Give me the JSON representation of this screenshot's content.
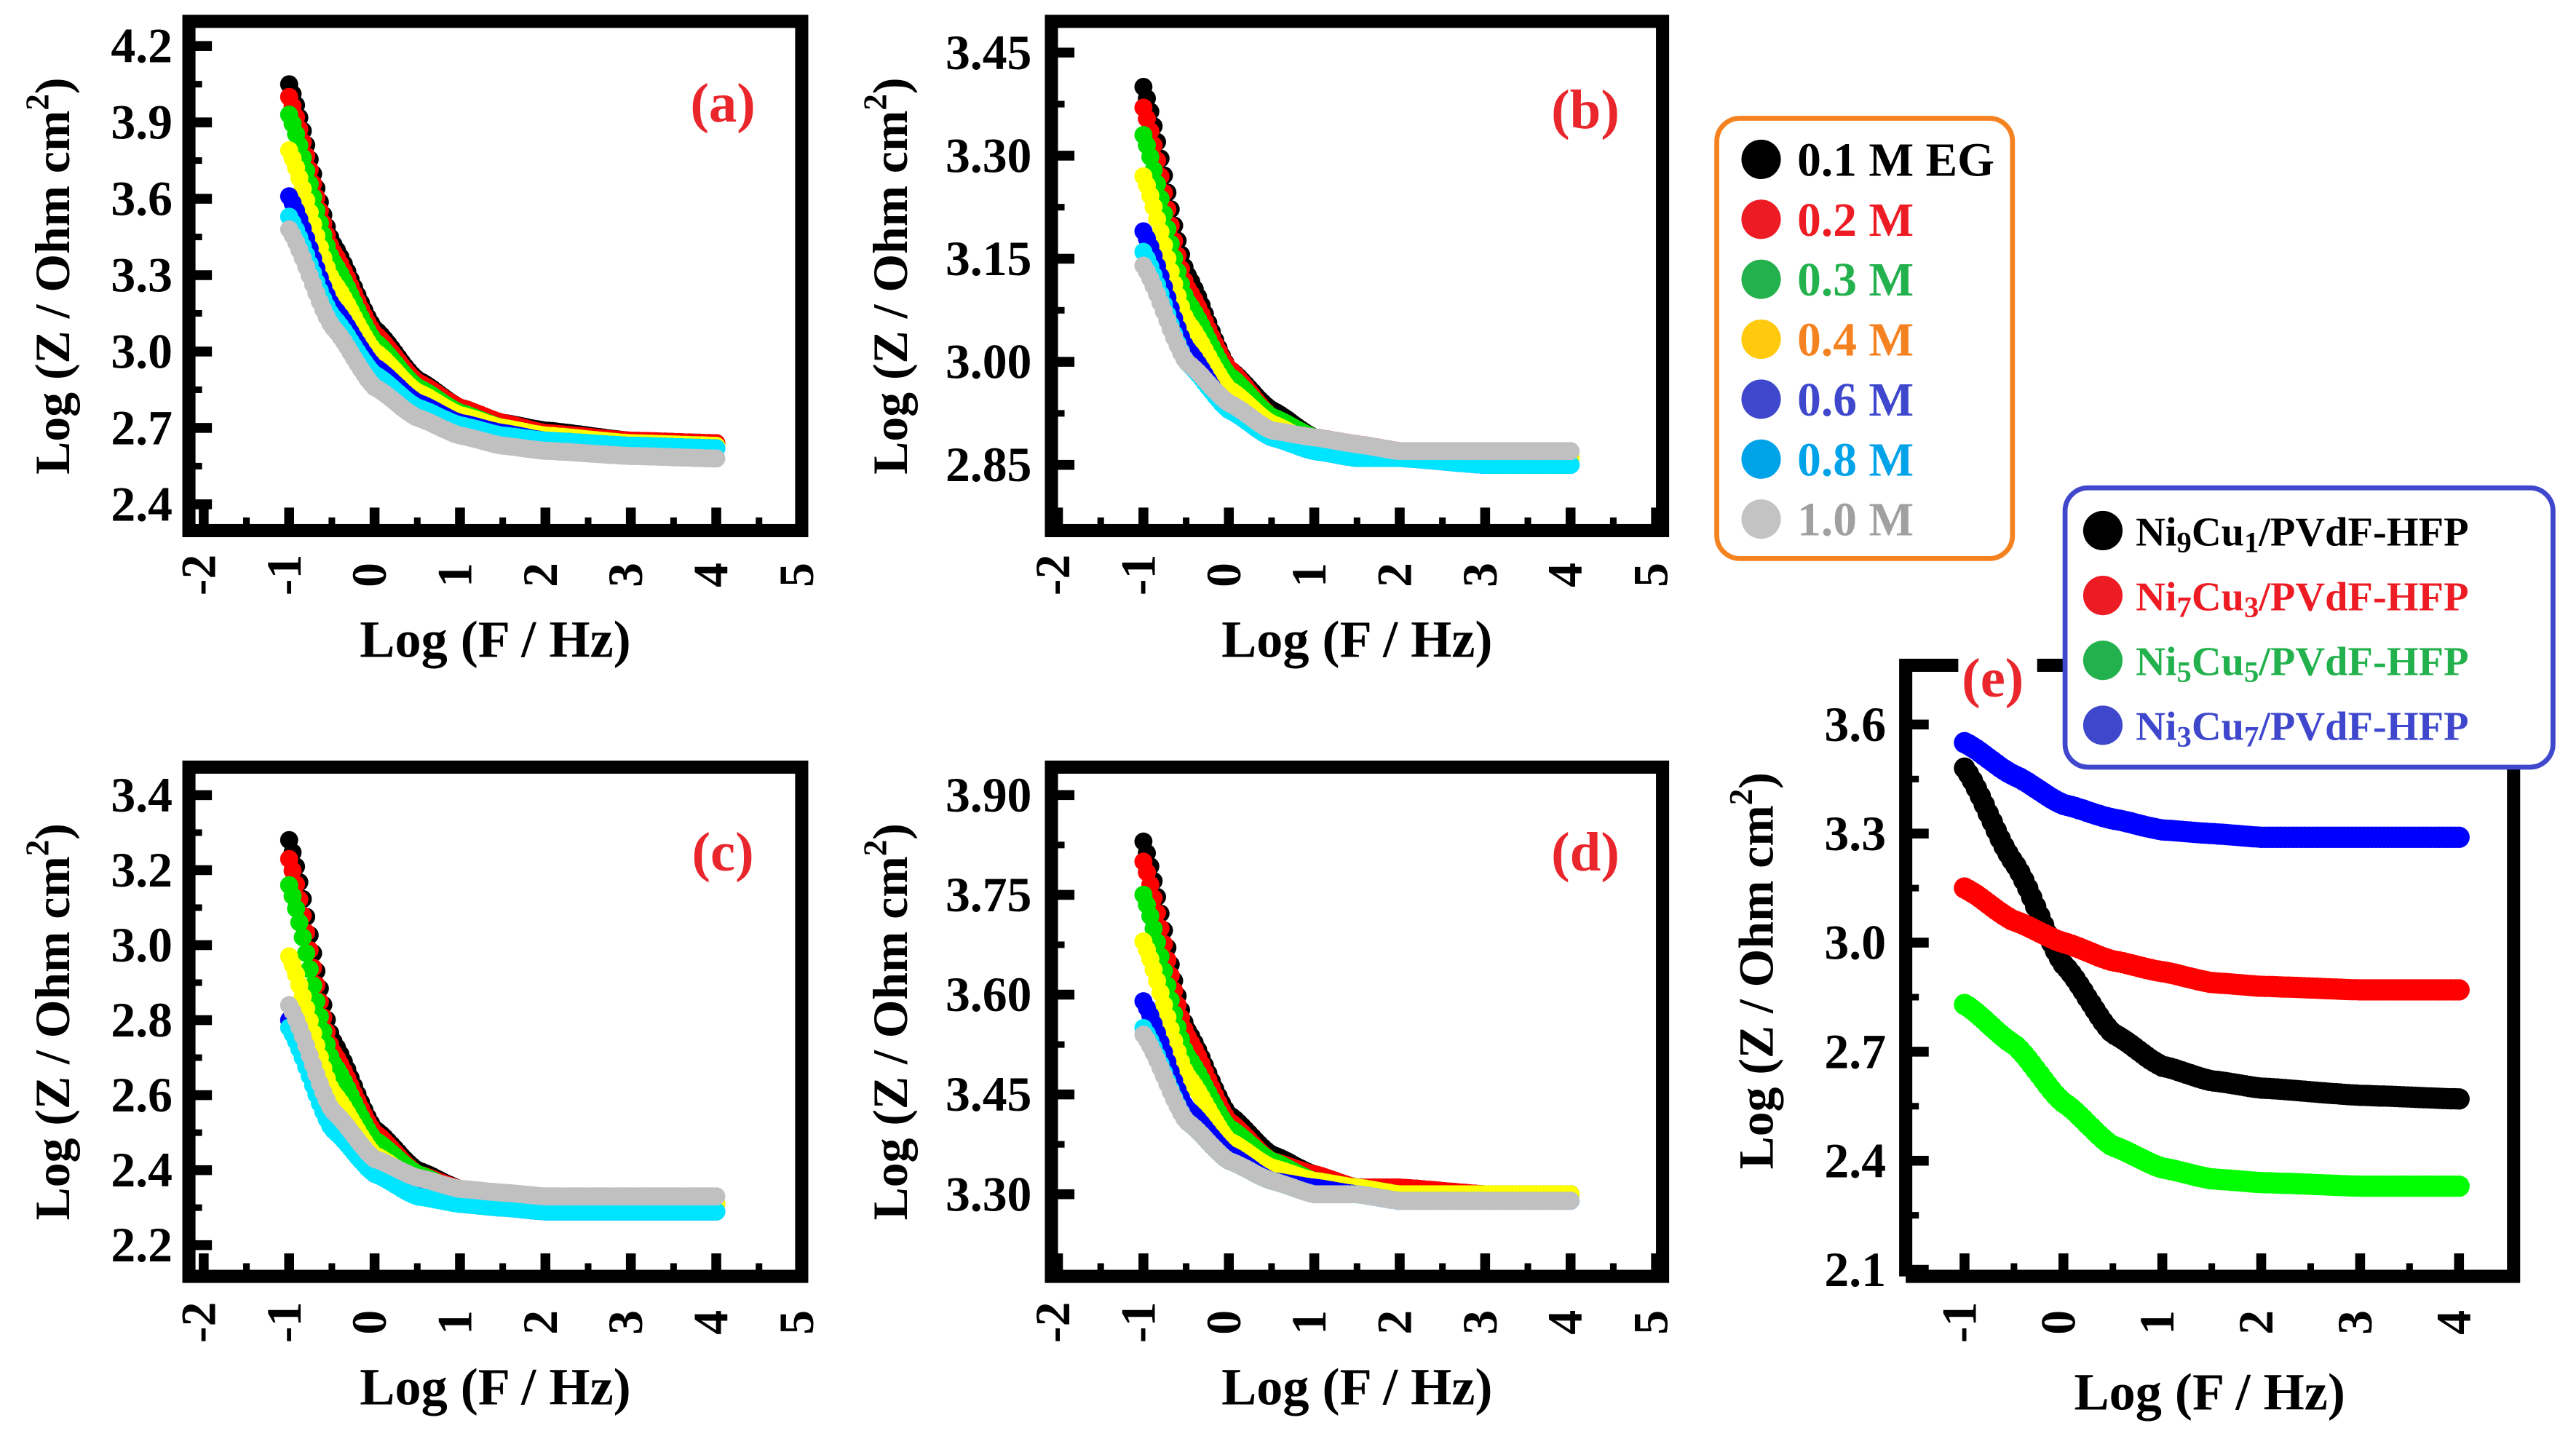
{
  "chart_data": [
    {
      "panel": "(a)",
      "type": "scatter",
      "xlabel": "Log (F / Hz)",
      "ylabel": {
        "main": "Log (Z / Ohm cm",
        "sup": "2",
        "end": ")"
      },
      "xticks": [
        "-2",
        "-1",
        "0",
        "1",
        "2",
        "3",
        "4",
        "5"
      ],
      "xlim": [
        -2,
        5
      ],
      "yticks": [
        "2.4",
        "2.7",
        "3.0",
        "3.3",
        "3.6",
        "3.9",
        "4.2"
      ],
      "ylim": [
        2.4,
        4.2
      ],
      "x": [
        -1,
        -0.5,
        0,
        0.5,
        1,
        1.5,
        2,
        3,
        4
      ],
      "series": [
        {
          "name": "0.1 M EG",
          "values": [
            4.05,
            3.43,
            3.09,
            2.89,
            2.78,
            2.72,
            2.69,
            2.65,
            2.64
          ]
        },
        {
          "name": "0.2 M",
          "values": [
            4.0,
            3.4,
            3.07,
            2.88,
            2.78,
            2.72,
            2.68,
            2.65,
            2.64
          ]
        },
        {
          "name": "0.3 M",
          "values": [
            3.93,
            3.36,
            3.04,
            2.86,
            2.76,
            2.7,
            2.67,
            2.64,
            2.63
          ]
        },
        {
          "name": "0.4 M",
          "values": [
            3.79,
            3.28,
            3.0,
            2.84,
            2.75,
            2.7,
            2.67,
            2.64,
            2.63
          ]
        },
        {
          "name": "0.6 M",
          "values": [
            3.61,
            3.18,
            2.94,
            2.8,
            2.72,
            2.68,
            2.65,
            2.63,
            2.62
          ]
        },
        {
          "name": "0.8 M",
          "values": [
            3.53,
            3.14,
            2.91,
            2.78,
            2.71,
            2.67,
            2.65,
            2.63,
            2.62
          ]
        },
        {
          "name": "1.0 M",
          "values": [
            3.48,
            3.1,
            2.86,
            2.74,
            2.67,
            2.63,
            2.61,
            2.59,
            2.58
          ]
        }
      ]
    },
    {
      "panel": "(b)",
      "type": "scatter",
      "xlabel": "Log (F / Hz)",
      "ylabel": {
        "main": "Log (Z / Ohm cm",
        "sup": "2",
        "end": ")"
      },
      "xticks": [
        "-2",
        "-1",
        "0",
        "1",
        "2",
        "3",
        "4",
        "5"
      ],
      "xlim": [
        -2,
        5
      ],
      "yticks": [
        "2.85",
        "3.00",
        "3.15",
        "3.30",
        "3.45"
      ],
      "ylim": [
        2.85,
        3.45
      ],
      "x": [
        -1,
        -0.5,
        0,
        0.5,
        1,
        1.5,
        2,
        3,
        4
      ],
      "series": [
        {
          "name": "0.1 M EG",
          "values": [
            3.4,
            3.13,
            2.99,
            2.93,
            2.89,
            2.88,
            2.87,
            2.86,
            2.86
          ]
        },
        {
          "name": "0.2 M",
          "values": [
            3.37,
            3.11,
            2.99,
            2.92,
            2.89,
            2.88,
            2.87,
            2.86,
            2.86
          ]
        },
        {
          "name": "0.3 M",
          "values": [
            3.33,
            3.09,
            2.98,
            2.92,
            2.89,
            2.87,
            2.87,
            2.86,
            2.86
          ]
        },
        {
          "name": "0.4 M",
          "values": [
            3.27,
            3.06,
            2.96,
            2.91,
            2.88,
            2.87,
            2.87,
            2.86,
            2.86
          ]
        },
        {
          "name": "0.6 M",
          "values": [
            3.19,
            3.02,
            2.93,
            2.89,
            2.87,
            2.86,
            2.86,
            2.85,
            2.85
          ]
        },
        {
          "name": "0.8 M",
          "values": [
            3.16,
            3.0,
            2.93,
            2.89,
            2.87,
            2.86,
            2.86,
            2.85,
            2.85
          ]
        },
        {
          "name": "1.0 M",
          "values": [
            3.14,
            3.0,
            2.94,
            2.9,
            2.89,
            2.88,
            2.87,
            2.87,
            2.87
          ]
        }
      ]
    },
    {
      "panel": "(c)",
      "type": "scatter",
      "xlabel": "Log (F / Hz)",
      "ylabel": {
        "main": "Log (Z / Ohm cm",
        "sup": "2",
        "end": ")"
      },
      "xticks": [
        "-2",
        "-1",
        "0",
        "1",
        "2",
        "3",
        "4",
        "5"
      ],
      "xlim": [
        -2,
        5
      ],
      "yticks": [
        "2.2",
        "2.4",
        "2.6",
        "2.8",
        "3.0",
        "3.2",
        "3.4"
      ],
      "ylim": [
        2.2,
        3.4
      ],
      "x": [
        -1,
        -0.5,
        0,
        0.5,
        1,
        1.5,
        2,
        3,
        4
      ],
      "series": [
        {
          "name": "0.1 M EG",
          "values": [
            3.28,
            2.75,
            2.51,
            2.4,
            2.35,
            2.33,
            2.32,
            2.31,
            2.31
          ]
        },
        {
          "name": "0.2 M",
          "values": [
            3.23,
            2.72,
            2.5,
            2.39,
            2.35,
            2.33,
            2.32,
            2.31,
            2.31
          ]
        },
        {
          "name": "0.3 M",
          "values": [
            3.16,
            2.69,
            2.48,
            2.39,
            2.34,
            2.33,
            2.32,
            2.31,
            2.31
          ]
        },
        {
          "name": "0.4 M",
          "values": [
            2.97,
            2.61,
            2.44,
            2.37,
            2.34,
            2.32,
            2.32,
            2.31,
            2.31
          ]
        },
        {
          "name": "0.6 M",
          "values": [
            2.8,
            2.52,
            2.39,
            2.34,
            2.31,
            2.3,
            2.29,
            2.29,
            2.29
          ]
        },
        {
          "name": "0.8 M",
          "values": [
            2.78,
            2.51,
            2.39,
            2.33,
            2.31,
            2.3,
            2.29,
            2.29,
            2.29
          ]
        },
        {
          "name": "1.0 M",
          "values": [
            2.84,
            2.56,
            2.43,
            2.38,
            2.35,
            2.34,
            2.33,
            2.33,
            2.33
          ]
        }
      ]
    },
    {
      "panel": "(d)",
      "type": "scatter",
      "xlabel": "Log (F / Hz)",
      "ylabel": {
        "main": "Log (Z / Ohm cm",
        "sup": "2",
        "end": ")"
      },
      "xticks": [
        "-2",
        "-1",
        "0",
        "1",
        "2",
        "3",
        "4",
        "5"
      ],
      "xlim": [
        -2,
        5
      ],
      "yticks": [
        "3.30",
        "3.45",
        "3.60",
        "3.75",
        "3.90"
      ],
      "ylim": [
        3.3,
        3.9
      ],
      "x": [
        -1,
        -0.5,
        0,
        0.5,
        1,
        1.5,
        2,
        3,
        4
      ],
      "series": [
        {
          "name": "0.1 M EG",
          "values": [
            3.83,
            3.55,
            3.42,
            3.36,
            3.33,
            3.31,
            3.31,
            3.3,
            3.3
          ]
        },
        {
          "name": "0.2 M",
          "values": [
            3.8,
            3.54,
            3.41,
            3.35,
            3.33,
            3.31,
            3.31,
            3.3,
            3.3
          ]
        },
        {
          "name": "0.3 M",
          "values": [
            3.75,
            3.51,
            3.4,
            3.35,
            3.32,
            3.31,
            3.3,
            3.3,
            3.3
          ]
        },
        {
          "name": "0.4 M",
          "values": [
            3.68,
            3.48,
            3.38,
            3.34,
            3.32,
            3.31,
            3.3,
            3.3,
            3.3
          ]
        },
        {
          "name": "0.6 M",
          "values": [
            3.59,
            3.43,
            3.36,
            3.32,
            3.31,
            3.3,
            3.29,
            3.29,
            3.29
          ]
        },
        {
          "name": "0.8 M",
          "values": [
            3.55,
            3.41,
            3.35,
            3.32,
            3.3,
            3.3,
            3.29,
            3.29,
            3.29
          ]
        },
        {
          "name": "1.0 M",
          "values": [
            3.54,
            3.41,
            3.35,
            3.32,
            3.3,
            3.3,
            3.29,
            3.29,
            3.29
          ]
        }
      ]
    },
    {
      "panel": "(e)",
      "type": "scatter",
      "xlabel": "Log (F / Hz)",
      "ylabel": {
        "main": "Log (Z / Ohm cm",
        "sup": "2",
        "end": ")"
      },
      "xticks": [
        "-1",
        "0",
        "1",
        "2",
        "3",
        "4"
      ],
      "xlim": [
        -1,
        4
      ],
      "yticks": [
        "2.1",
        "2.4",
        "2.7",
        "3.0",
        "3.3",
        "3.6"
      ],
      "ylim": [
        2.1,
        3.6
      ],
      "x": [
        -1,
        -0.5,
        0,
        0.5,
        1,
        1.5,
        2,
        3,
        4
      ],
      "series": [
        {
          "name": "Ni9Cu1/PVdF-HFP",
          "values": [
            3.48,
            3.22,
            2.94,
            2.75,
            2.66,
            2.62,
            2.6,
            2.58,
            2.57
          ]
        },
        {
          "name": "Ni7Cu3/PVdF-HFP",
          "values": [
            3.15,
            3.06,
            3.0,
            2.95,
            2.92,
            2.89,
            2.88,
            2.87,
            2.87
          ]
        },
        {
          "name": "Ni5Cu5/PVdF-HFP",
          "values": [
            2.83,
            2.72,
            2.56,
            2.44,
            2.38,
            2.35,
            2.34,
            2.33,
            2.33
          ]
        },
        {
          "name": "Ni3Cu7/PVdF-HFP",
          "values": [
            3.55,
            3.46,
            3.38,
            3.34,
            3.31,
            3.3,
            3.29,
            3.29,
            3.29
          ]
        }
      ]
    }
  ],
  "legend_concentration": {
    "border_color": "#f58220",
    "items": [
      {
        "label": "0.1 M EG",
        "marker": "#000000",
        "text": "#000000"
      },
      {
        "label": "0.2 M",
        "marker": "#ed1c24",
        "text": "#ed1c24"
      },
      {
        "label": "0.3 M",
        "marker": "#22b14c",
        "text": "#22b14c"
      },
      {
        "label": "0.4 M",
        "marker": "#ffc90e",
        "text": "#f58220"
      },
      {
        "label": "0.6 M",
        "marker": "#3f48cc",
        "text": "#3f48cc"
      },
      {
        "label": "0.8 M",
        "marker": "#00a2e8",
        "text": "#00a2e8"
      },
      {
        "label": "1.0 M",
        "marker": "#c3c3c3",
        "text": "#a0a0a0"
      }
    ]
  },
  "legend_composition": {
    "border_color": "#3f48cc",
    "items": [
      {
        "parts": [
          "Ni",
          "9",
          "Cu",
          "1",
          "/PVdF-HFP"
        ],
        "marker": "#000000",
        "text": "#000000"
      },
      {
        "parts": [
          "Ni",
          "7",
          "Cu",
          "3",
          "/PVdF-HFP"
        ],
        "marker": "#ed1c24",
        "text": "#ed1c24"
      },
      {
        "parts": [
          "Ni",
          "5",
          "Cu",
          "5",
          "/PVdF-HFP"
        ],
        "marker": "#22b14c",
        "text": "#22b14c"
      },
      {
        "parts": [
          "Ni",
          "3",
          "Cu",
          "7",
          "/PVdF-HFP"
        ],
        "marker": "#3f48cc",
        "text": "#3f48cc"
      }
    ]
  },
  "series_colors_concentration": [
    "#000000",
    "#ff0000",
    "#00e000",
    "#ffff00",
    "#0000ff",
    "#00e5ff",
    "#c0c0c0"
  ],
  "series_colors_composition": [
    "#000000",
    "#ff0000",
    "#00ff00",
    "#0000ff"
  ],
  "panel_label_color": "#e8262c"
}
